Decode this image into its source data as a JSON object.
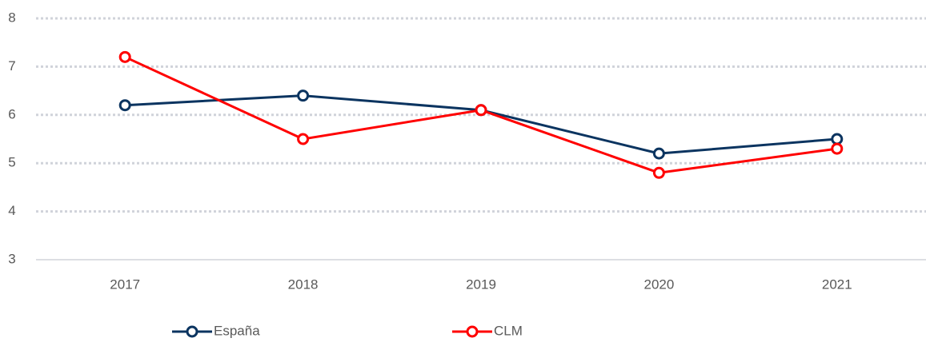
{
  "chart_data": {
    "type": "line",
    "categories": [
      "2017",
      "2018",
      "2019",
      "2020",
      "2021"
    ],
    "series": [
      {
        "name": "España",
        "color": "#0b3460",
        "values": [
          6.2,
          6.4,
          6.1,
          5.2,
          5.5
        ]
      },
      {
        "name": "CLM",
        "color": "#ff0000",
        "values": [
          7.2,
          5.5,
          6.1,
          4.8,
          5.3
        ]
      }
    ],
    "ylim": [
      3,
      8
    ],
    "yticks": [
      3,
      4,
      5,
      6,
      7,
      8
    ],
    "grid": true,
    "legend": "bottom"
  }
}
